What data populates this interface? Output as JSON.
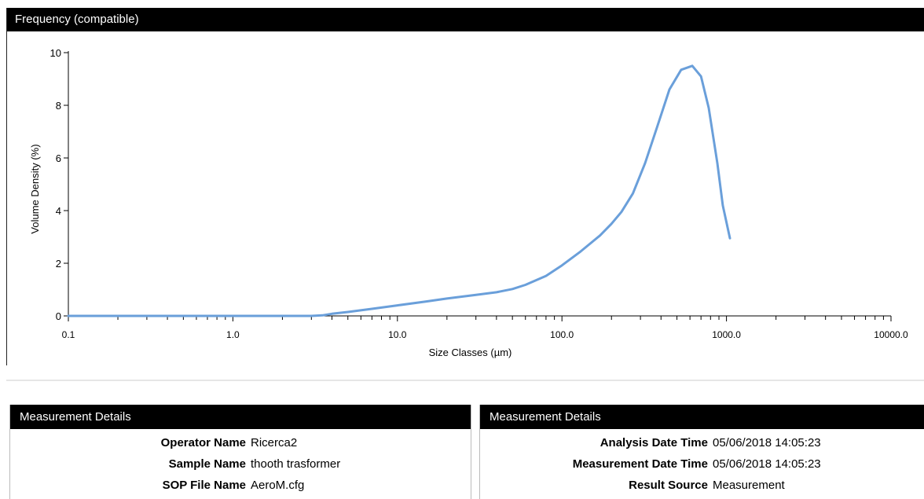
{
  "chart_panel": {
    "title": "Frequency (compatible)"
  },
  "chart_data": {
    "type": "line",
    "xlabel": "Size Classes (µm)",
    "ylabel": "Volume Density (%)",
    "x_scale": "log",
    "xlim": [
      0.1,
      10000
    ],
    "ylim": [
      0,
      10
    ],
    "x_tick_labels": [
      "0.1",
      "1.0",
      "10.0",
      "100.0",
      "1000.0",
      "10000.0"
    ],
    "y_tick_labels": [
      "0",
      "2",
      "4",
      "6",
      "8",
      "10"
    ],
    "series_color": "#6a9fda",
    "x": [
      0.1,
      0.5,
      1.0,
      2.0,
      3.0,
      3.5,
      4.0,
      5.0,
      7.0,
      10,
      15,
      20,
      30,
      40,
      50,
      60,
      70,
      80,
      100,
      130,
      170,
      200,
      230,
      270,
      320,
      380,
      450,
      530,
      620,
      700,
      780,
      880,
      950,
      1050
    ],
    "y": [
      0,
      0,
      0,
      0,
      0,
      0.02,
      0.08,
      0.15,
      0.27,
      0.4,
      0.55,
      0.66,
      0.8,
      0.9,
      1.02,
      1.18,
      1.36,
      1.52,
      1.92,
      2.45,
      3.05,
      3.5,
      3.95,
      4.65,
      5.8,
      7.2,
      8.6,
      9.35,
      9.5,
      9.1,
      7.9,
      5.8,
      4.2,
      2.95
    ]
  },
  "details_left": {
    "title": "Measurement Details",
    "rows": [
      {
        "label": "Operator Name",
        "value": "Ricerca2"
      },
      {
        "label": "Sample Name",
        "value": "thooth trasformer"
      },
      {
        "label": "SOP File Name",
        "value": "AeroM.cfg"
      }
    ]
  },
  "details_right": {
    "title": "Measurement Details",
    "rows": [
      {
        "label": "Analysis Date Time",
        "value": "05/06/2018 14:05:23"
      },
      {
        "label": "Measurement Date Time",
        "value": "05/06/2018 14:05:23"
      },
      {
        "label": "Result Source",
        "value": "Measurement"
      }
    ]
  }
}
